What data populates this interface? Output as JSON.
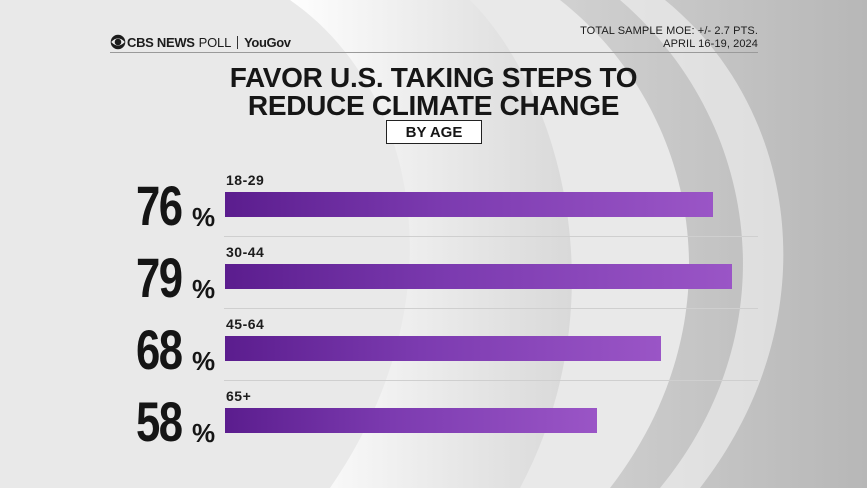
{
  "header": {
    "brand_cbs": "CBS NEWS",
    "brand_poll": "POLL",
    "brand_partner": "YouGov",
    "moe_line1": "TOTAL SAMPLE MOE: +/- 2.7 PTS.",
    "moe_line2": "APRIL 16-19, 2024"
  },
  "title": {
    "line1": "FAVOR U.S. TAKING STEPS TO",
    "line2": "REDUCE CLIMATE CHANGE"
  },
  "subtitle": "BY AGE",
  "colors": {
    "bar_start": "#5b1d8e",
    "bar_end": "#9a55c6",
    "text": "#161616"
  },
  "chart_data": {
    "type": "bar",
    "orientation": "horizontal",
    "title": "FAVOR U.S. TAKING STEPS TO REDUCE CLIMATE CHANGE",
    "subtitle": "BY AGE",
    "categories": [
      "18-29",
      "30-44",
      "45-64",
      "65+"
    ],
    "values": [
      76,
      79,
      68,
      58
    ],
    "value_labels": [
      "76",
      "79",
      "68",
      "58"
    ],
    "value_suffix": "%",
    "xlim": [
      0,
      100
    ],
    "xlabel": "",
    "ylabel": "",
    "grid": false
  }
}
